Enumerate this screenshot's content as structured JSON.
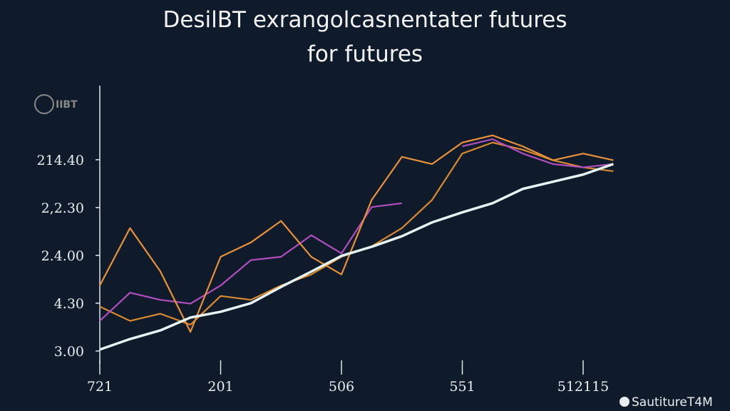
{
  "chart_data": {
    "type": "line",
    "title": "DesilBT exrangolcasnentater futures",
    "subtitle": "for futures",
    "logo_text": "IIBT",
    "watermark": "SautitureT4M",
    "x": [
      0,
      0.25,
      0.5,
      0.75,
      1,
      1.25,
      1.5,
      1.75,
      2,
      2.25,
      2.5,
      2.75,
      3,
      3.25,
      3.5,
      3.75,
      4,
      4.25
    ],
    "series": [
      {
        "color": "#e6f3f3",
        "values": [
          0.03,
          0.25,
          0.43,
          0.7,
          0.82,
          1.0,
          1.34,
          1.66,
          1.99,
          2.18,
          2.4,
          2.69,
          2.9,
          3.09,
          3.39,
          3.54,
          3.69,
          3.91
        ]
      },
      {
        "color": "#e8903a",
        "values": [
          1.37,
          2.57,
          1.67,
          0.4,
          1.97,
          2.27,
          2.72,
          1.97,
          1.6,
          3.16,
          4.06,
          3.91,
          4.36,
          4.51,
          4.28,
          3.99,
          4.13,
          3.99
        ]
      },
      {
        "color": "#b04ec0",
        "values": [
          0.63,
          1.22,
          1.07,
          0.99,
          1.37,
          1.9,
          1.97,
          2.42,
          2.04,
          3.01,
          3.09,
          null,
          4.28,
          4.43,
          4.13,
          3.91,
          3.84,
          3.91
        ]
      },
      {
        "color": "#d98a2e",
        "values": [
          0.93,
          0.63,
          0.78,
          0.55,
          1.15,
          1.07,
          1.37,
          1.6,
          1.97,
          2.19,
          2.57,
          3.16,
          4.13,
          4.36,
          4.21,
          3.99,
          3.84,
          3.76
        ]
      }
    ],
    "xlim": [
      0,
      4.3
    ],
    "xticks": [
      {
        "value": 0,
        "label": "721"
      },
      {
        "value": 1,
        "label": "201"
      },
      {
        "value": 2,
        "label": "506"
      },
      {
        "value": 3,
        "label": "551"
      },
      {
        "value": 4,
        "label": "512115"
      }
    ],
    "ylim": [
      -0.27,
      5.55
    ],
    "yticks": [
      {
        "value": 0,
        "label": "3.00"
      },
      {
        "value": 1,
        "label": "4.30"
      },
      {
        "value": 2,
        "label": "2.4.00"
      },
      {
        "value": 3,
        "label": "2,2.30"
      },
      {
        "value": 4,
        "label": "214.40"
      }
    ]
  }
}
